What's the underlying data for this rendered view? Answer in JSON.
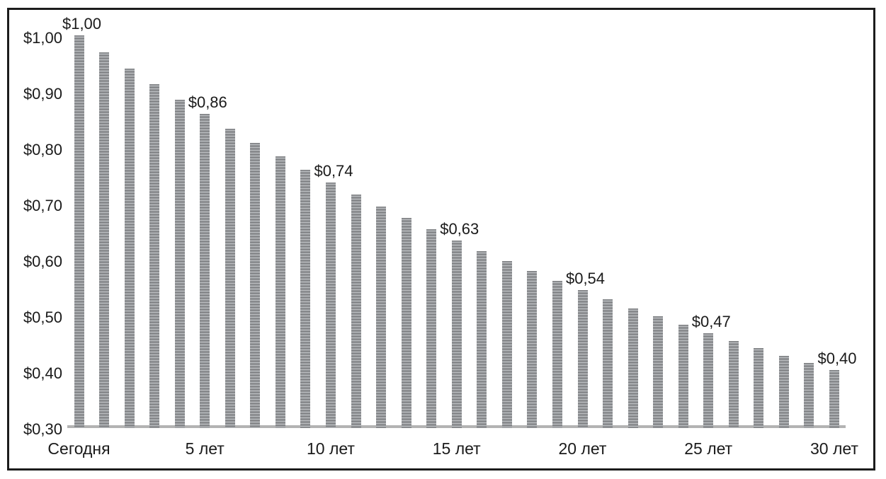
{
  "chart_data": {
    "type": "bar",
    "title": "",
    "xlabel": "",
    "ylabel": "",
    "ylim": [
      0.3,
      1.0
    ],
    "grid": false,
    "legend": null,
    "x": [
      0,
      1,
      2,
      3,
      4,
      5,
      6,
      7,
      8,
      9,
      10,
      11,
      12,
      13,
      14,
      15,
      16,
      17,
      18,
      19,
      20,
      21,
      22,
      23,
      24,
      25,
      26,
      27,
      28,
      29,
      30
    ],
    "values": [
      1.0,
      0.97,
      0.941,
      0.913,
      0.885,
      0.859,
      0.833,
      0.808,
      0.784,
      0.76,
      0.737,
      0.715,
      0.694,
      0.673,
      0.653,
      0.633,
      0.614,
      0.596,
      0.578,
      0.561,
      0.544,
      0.528,
      0.512,
      0.497,
      0.482,
      0.467,
      0.453,
      0.44,
      0.427,
      0.414,
      0.401
    ],
    "y_ticks": [
      {
        "value": 0.3,
        "label": "$0,30"
      },
      {
        "value": 0.4,
        "label": "$0,40"
      },
      {
        "value": 0.5,
        "label": "$0,50"
      },
      {
        "value": 0.6,
        "label": "$0,60"
      },
      {
        "value": 0.7,
        "label": "$0,70"
      },
      {
        "value": 0.8,
        "label": "$0,80"
      },
      {
        "value": 0.9,
        "label": "$0,90"
      },
      {
        "value": 1.0,
        "label": "$1,00"
      }
    ],
    "x_tick_labels": [
      {
        "index": 0,
        "label": "Сегодня"
      },
      {
        "index": 5,
        "label": "5 лет"
      },
      {
        "index": 10,
        "label": "10 лет"
      },
      {
        "index": 15,
        "label": "15 лет"
      },
      {
        "index": 20,
        "label": "20 лет"
      },
      {
        "index": 25,
        "label": "25 лет"
      },
      {
        "index": 30,
        "label": "30 лет"
      }
    ],
    "bar_value_labels": [
      {
        "index": 0,
        "text": "$1,00"
      },
      {
        "index": 5,
        "text": "$0,86"
      },
      {
        "index": 10,
        "text": "$0,74"
      },
      {
        "index": 15,
        "text": "$0,63"
      },
      {
        "index": 20,
        "text": "$0,54"
      },
      {
        "index": 25,
        "text": "$0,47"
      },
      {
        "index": 30,
        "text": "$0,40"
      }
    ],
    "colors": {
      "bar_stripe_dark": "#7d7f82",
      "bar_stripe_mid": "#97999c",
      "bar_stripe_light": "#b5b8bb",
      "axis_line": "#b3b3b3",
      "text": "#1a1a1a",
      "frame_border": "#1c1c1c",
      "background": "#ffffff"
    }
  }
}
